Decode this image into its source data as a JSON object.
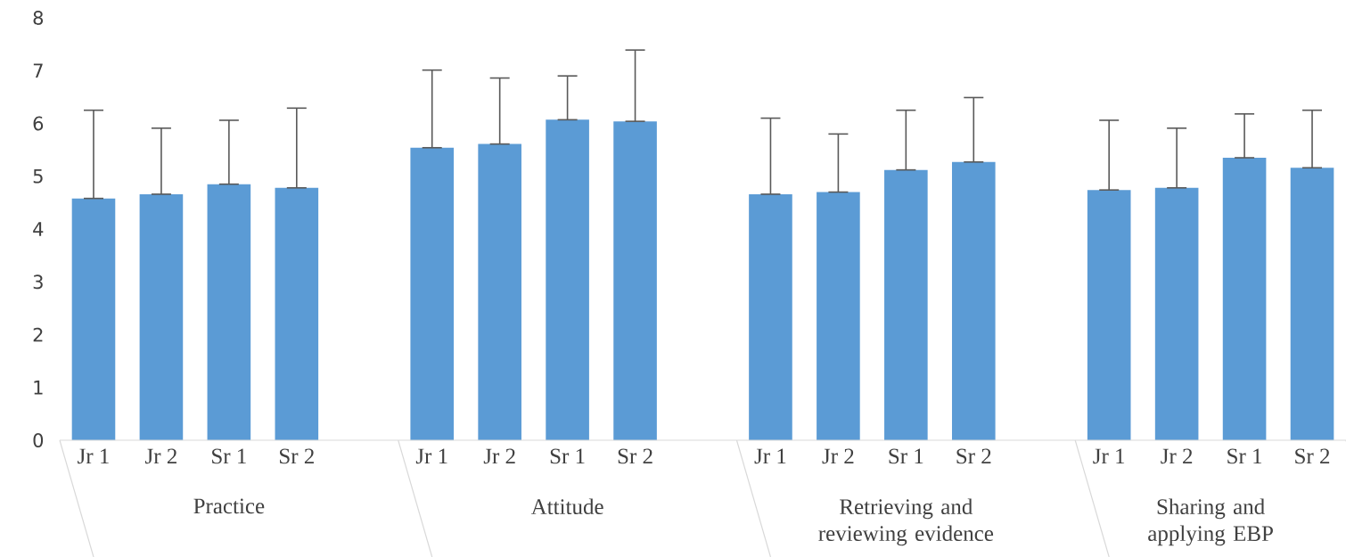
{
  "chart_data": {
    "type": "bar",
    "color": "#5b9bd5",
    "categories": [
      "Jr 1",
      "Jr 2",
      "Sr 1",
      "Sr 2",
      null,
      "Jr 1",
      "Jr 2",
      "Sr 1",
      "Sr 2",
      null,
      "Jr 1",
      "Jr 2",
      "Sr 1",
      "Sr 2",
      null,
      "Jr 1",
      "Jr 2",
      "Sr 1",
      "Sr 2"
    ],
    "values": [
      4.58,
      4.66,
      4.85,
      4.78,
      null,
      5.54,
      5.61,
      6.07,
      6.04,
      null,
      4.66,
      4.7,
      5.12,
      5.27,
      null,
      4.74,
      4.78,
      5.35,
      5.16
    ],
    "errors": [
      [
        4.58,
        6.25
      ],
      [
        4.66,
        5.91
      ],
      [
        4.85,
        6.06
      ],
      [
        4.78,
        6.29
      ],
      null,
      [
        5.54,
        7.01
      ],
      [
        5.61,
        6.86
      ],
      [
        6.07,
        6.9
      ],
      [
        6.04,
        7.39
      ],
      null,
      [
        4.66,
        6.1
      ],
      [
        4.7,
        5.8
      ],
      [
        5.12,
        6.25
      ],
      [
        5.27,
        6.49
      ],
      null,
      [
        4.74,
        6.06
      ],
      [
        4.78,
        5.91
      ],
      [
        5.35,
        6.18
      ],
      [
        5.16,
        6.25
      ]
    ],
    "ylim": [
      0,
      8
    ],
    "yticks": [
      0,
      1,
      2,
      3,
      4,
      5,
      6,
      7,
      8
    ],
    "annotations": [
      "Practice",
      "Attitude",
      "Retrieving and reviewing evidence",
      "Sharing and applying EBP"
    ]
  }
}
